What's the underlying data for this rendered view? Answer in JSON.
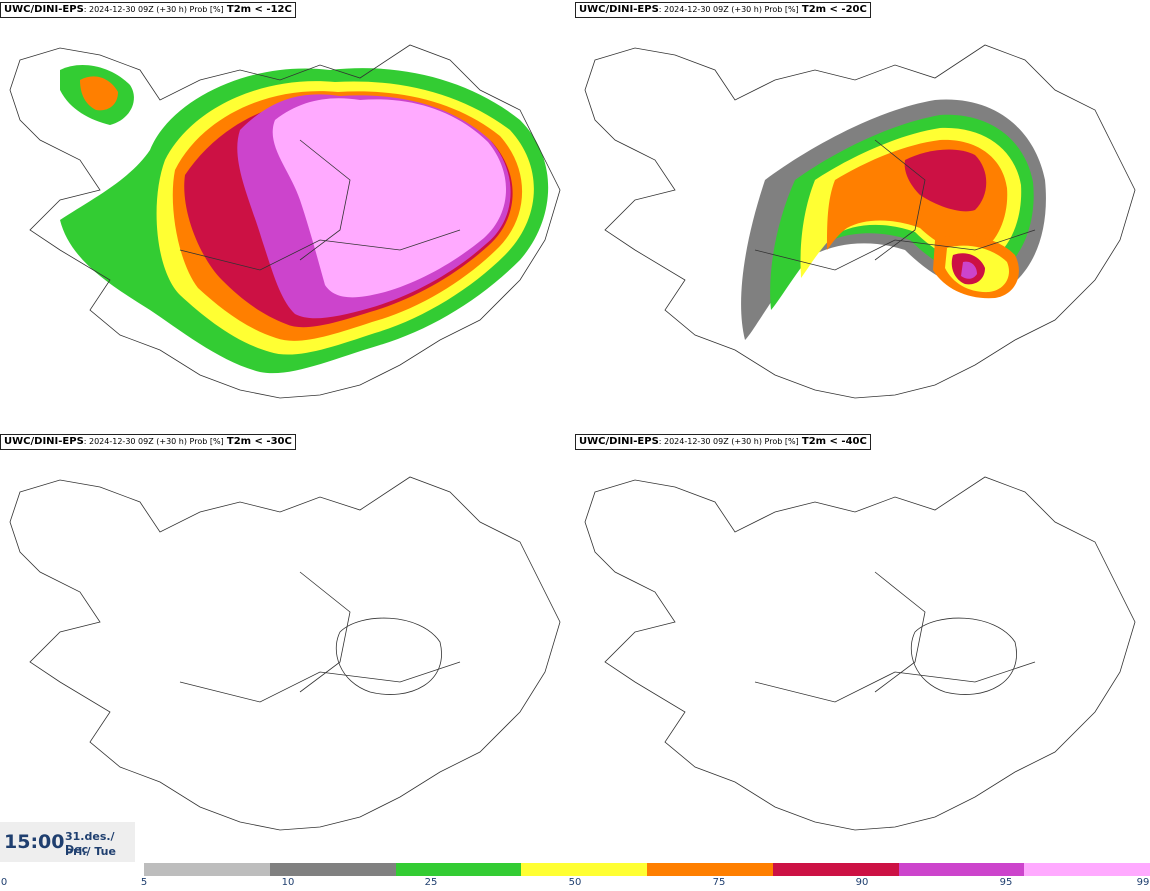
{
  "panels": [
    {
      "source": "UWC/DINI-EPS",
      "meta": ": 2024-12-30 09Z (+30 h) Prob [%]",
      "variable": "T2m < -12C"
    },
    {
      "source": "UWC/DINI-EPS",
      "meta": ": 2024-12-30 09Z (+30 h) Prob [%]",
      "variable": "T2m < -20C"
    },
    {
      "source": "UWC/DINI-EPS",
      "meta": ": 2024-12-30 09Z (+30 h) Prob [%]",
      "variable": "T2m < -30C"
    },
    {
      "source": "UWC/DINI-EPS",
      "meta": ": 2024-12-30 09Z (+30 h) Prob [%]",
      "variable": "T2m < -40C"
    }
  ],
  "valid_time": {
    "time": "15:00",
    "date": "31.des./ Dec",
    "weekday": "Þri./ Tue"
  },
  "legend": {
    "ticks": [
      "0",
      "5",
      "10",
      "25",
      "50",
      "75",
      "90",
      "95",
      "99"
    ],
    "colors": [
      "#bdbdbd",
      "#808080",
      "#33cc33",
      "#ffff33",
      "#ff7f00",
      "#cc1144",
      "#cc44cc",
      "#ffaaff"
    ]
  }
}
